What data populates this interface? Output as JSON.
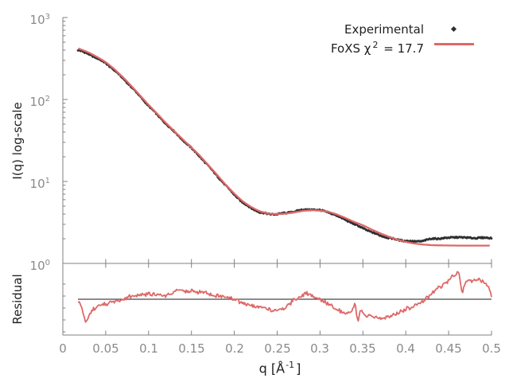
{
  "colors": {
    "background": "#ffffff",
    "axis": "#808080",
    "tick_label": "#8a8a8a",
    "text": "#1f1f1f",
    "experimental": "#2e2e2e",
    "fit": "#df6868",
    "reference_line": "#1a1a1a"
  },
  "legend": {
    "experimental_label": "Experimental",
    "foxs_prefix": "FoXS χ",
    "foxs_sup": "2",
    "foxs_suffix": " = 17.7"
  },
  "main_plot": {
    "ylabel": "I(q) log-scale",
    "yticks": [
      {
        "base": "10",
        "exp": "3"
      },
      {
        "base": "10",
        "exp": "2"
      },
      {
        "base": "10",
        "exp": "1"
      },
      {
        "base": "10",
        "exp": "0"
      }
    ]
  },
  "residual_plot": {
    "ylabel": "Residual"
  },
  "x_axis": {
    "label_prefix": "q [Å",
    "label_sup": "-1",
    "label_suffix": "]",
    "ticks": [
      "0",
      "0.05",
      "0.1",
      "0.15",
      "0.2",
      "0.25",
      "0.3",
      "0.35",
      "0.4",
      "0.45",
      "0.5"
    ]
  },
  "chart_data": [
    {
      "type": "line",
      "title": "",
      "xlabel": "q [Å^-1]",
      "ylabel": "I(q) log-scale",
      "x_range": [
        0,
        0.5
      ],
      "y_scale": "log",
      "y_range": [
        1,
        1000
      ],
      "legend_position": "top-right",
      "grid": false,
      "series": [
        {
          "name": "Experimental",
          "style": "points",
          "marker": "diamond",
          "color": "#2e2e2e",
          "q_start": 0.0176,
          "q_end": 0.5,
          "x": [
            0.018,
            0.03,
            0.04,
            0.05,
            0.06,
            0.07,
            0.08,
            0.09,
            0.1,
            0.11,
            0.12,
            0.13,
            0.14,
            0.15,
            0.16,
            0.17,
            0.18,
            0.19,
            0.2,
            0.21,
            0.22,
            0.23,
            0.24,
            0.25,
            0.26,
            0.27,
            0.28,
            0.29,
            0.3,
            0.31,
            0.32,
            0.33,
            0.34,
            0.35,
            0.36,
            0.37,
            0.38,
            0.39,
            0.4,
            0.41,
            0.42,
            0.43,
            0.44,
            0.45,
            0.46,
            0.47,
            0.48,
            0.49,
            0.5
          ],
          "y": [
            400,
            360,
            318,
            278,
            228,
            182,
            142,
            109,
            84,
            65,
            51,
            40.5,
            32,
            25.5,
            20,
            15.3,
            11.7,
            8.9,
            6.9,
            5.5,
            4.7,
            4.2,
            4.0,
            4.0,
            4.1,
            4.3,
            4.5,
            4.55,
            4.45,
            4.2,
            3.8,
            3.4,
            3.0,
            2.7,
            2.4,
            2.2,
            2.05,
            1.95,
            1.88,
            1.85,
            1.88,
            2.0,
            2.02,
            2.05,
            2.1,
            2.05,
            2.05,
            2.05,
            2.05
          ]
        },
        {
          "name": "FoXS χ2 = 17.7",
          "style": "line",
          "color": "#df6868",
          "x": [
            0.018,
            0.03,
            0.04,
            0.05,
            0.06,
            0.07,
            0.08,
            0.09,
            0.1,
            0.11,
            0.12,
            0.13,
            0.14,
            0.15,
            0.16,
            0.17,
            0.18,
            0.19,
            0.2,
            0.21,
            0.22,
            0.23,
            0.24,
            0.25,
            0.26,
            0.27,
            0.28,
            0.29,
            0.3,
            0.31,
            0.32,
            0.33,
            0.34,
            0.35,
            0.36,
            0.37,
            0.38,
            0.39,
            0.4,
            0.41,
            0.42,
            0.43,
            0.44,
            0.45,
            0.46,
            0.47,
            0.48,
            0.49,
            0.5
          ],
          "y": [
            420,
            375,
            330,
            286,
            235,
            187,
            146,
            112,
            86,
            67,
            52,
            41,
            32.5,
            26,
            20.5,
            15.7,
            12.0,
            9.1,
            7.1,
            5.7,
            4.85,
            4.3,
            4.05,
            4.0,
            4.05,
            4.2,
            4.38,
            4.47,
            4.4,
            4.27,
            3.95,
            3.57,
            3.2,
            2.92,
            2.6,
            2.34,
            2.12,
            1.95,
            1.83,
            1.75,
            1.7,
            1.67,
            1.66,
            1.655,
            1.65,
            1.65,
            1.65,
            1.65,
            1.65
          ]
        }
      ]
    },
    {
      "type": "line",
      "title": "",
      "ylabel": "Residual",
      "x_range": [
        0,
        0.5
      ],
      "y_range": [
        0,
        2
      ],
      "reference_line": 1.0,
      "grid": false,
      "series": [
        {
          "name": "Residual (Experimental / FoXS)",
          "style": "line",
          "color": "#df6868",
          "x": [
            0.018,
            0.022,
            0.027,
            0.032,
            0.04,
            0.05,
            0.06,
            0.07,
            0.08,
            0.09,
            0.1,
            0.11,
            0.12,
            0.128,
            0.135,
            0.142,
            0.15,
            0.158,
            0.165,
            0.175,
            0.185,
            0.195,
            0.205,
            0.215,
            0.225,
            0.235,
            0.247,
            0.258,
            0.268,
            0.278,
            0.285,
            0.295,
            0.305,
            0.315,
            0.325,
            0.335,
            0.341,
            0.344,
            0.347,
            0.35,
            0.36,
            0.37,
            0.38,
            0.39,
            0.4,
            0.41,
            0.42,
            0.43,
            0.44,
            0.45,
            0.456,
            0.462,
            0.466,
            0.47,
            0.475,
            0.48,
            0.485,
            0.49,
            0.495,
            0.5
          ],
          "y": [
            0.93,
            0.75,
            0.3,
            0.63,
            0.82,
            0.86,
            0.92,
            1.0,
            1.08,
            1.12,
            1.15,
            1.12,
            1.1,
            1.18,
            1.3,
            1.2,
            1.24,
            1.18,
            1.22,
            1.12,
            1.07,
            1.02,
            0.95,
            0.85,
            0.8,
            0.74,
            0.7,
            0.74,
            0.95,
            1.1,
            1.16,
            1.03,
            0.93,
            0.8,
            0.66,
            0.6,
            0.88,
            0.33,
            0.7,
            0.58,
            0.5,
            0.45,
            0.52,
            0.62,
            0.72,
            0.82,
            0.95,
            1.15,
            1.35,
            1.52,
            1.68,
            1.72,
            1.15,
            1.55,
            1.5,
            1.53,
            1.56,
            1.48,
            1.4,
            1.1
          ]
        }
      ]
    }
  ]
}
